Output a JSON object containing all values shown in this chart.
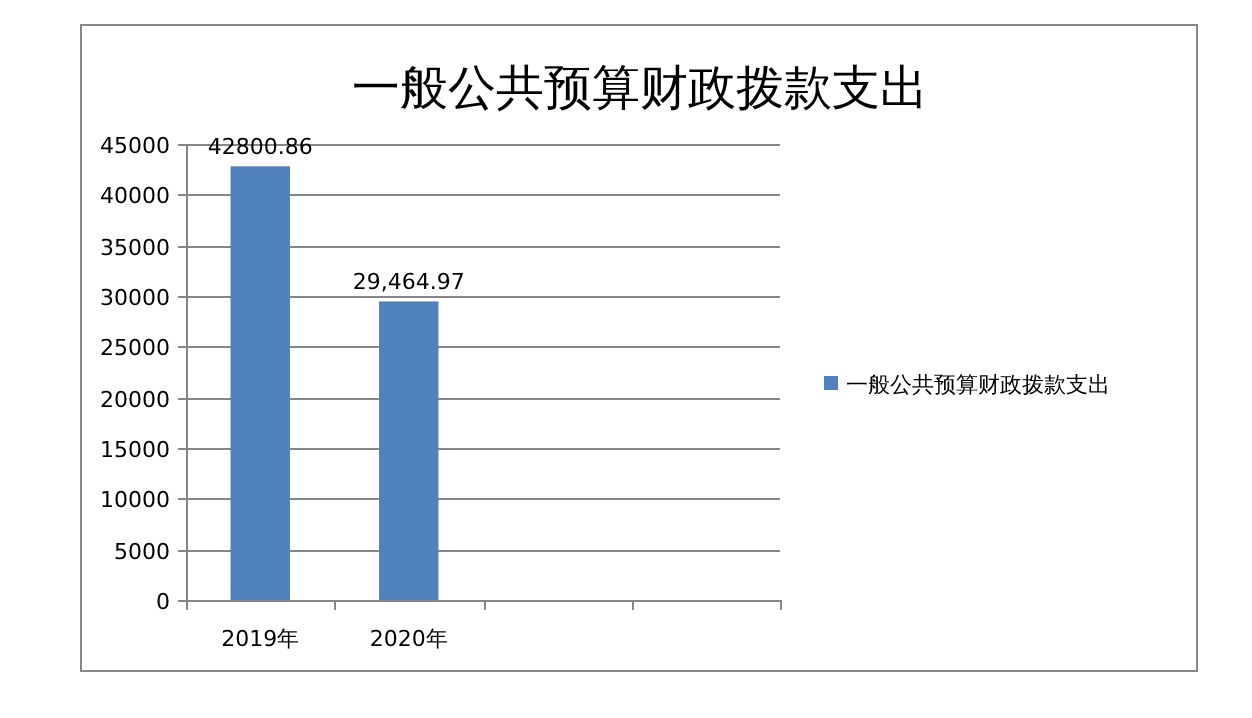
{
  "chart_data": {
    "type": "bar",
    "title": "一般公共预算财政拨款支出",
    "categories": [
      "2019年",
      "2020年",
      null,
      null
    ],
    "series": [
      {
        "name": "一般公共预算财政拨款支出",
        "color": "#4f81bd",
        "values": [
          42800.86,
          29464.97,
          null,
          null
        ],
        "value_labels": [
          "42800.86",
          "29,464.97",
          null,
          null
        ]
      }
    ],
    "ylim": [
      0,
      45000
    ],
    "yticks": [
      0,
      5000,
      10000,
      15000,
      20000,
      25000,
      30000,
      35000,
      40000,
      45000
    ],
    "grid": "y",
    "legend": "right"
  }
}
